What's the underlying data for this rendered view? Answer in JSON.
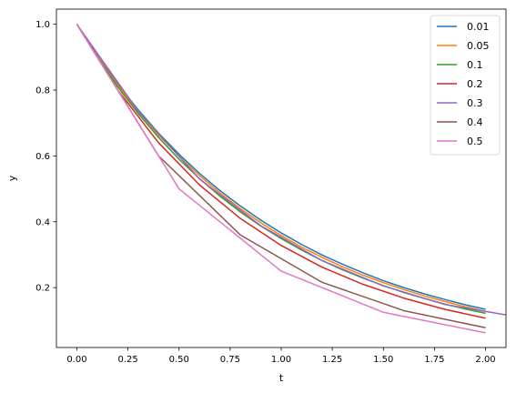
{
  "chart_data": {
    "type": "line",
    "xlabel": "t",
    "ylabel": "y",
    "xlim": [
      -0.1,
      2.1
    ],
    "ylim": [
      0.018,
      1.046
    ],
    "xticks": [
      0.0,
      0.25,
      0.5,
      0.75,
      1.0,
      1.25,
      1.5,
      1.75,
      2.0
    ],
    "xtick_labels": [
      "0.00",
      "0.25",
      "0.50",
      "0.75",
      "1.00",
      "1.25",
      "1.50",
      "1.75",
      "2.00"
    ],
    "yticks": [
      0.2,
      0.4,
      0.6,
      0.8,
      1.0
    ],
    "ytick_labels": [
      "0.2",
      "0.4",
      "0.6",
      "0.8",
      "1.0"
    ],
    "legend_position": "top-right",
    "grid": false,
    "series": [
      {
        "name": "0.01",
        "color": "#1f77b4",
        "x": [
          0,
          0.1,
          0.2,
          0.3,
          0.4,
          0.5,
          0.6,
          0.7,
          0.8,
          0.9,
          1.0,
          1.1,
          1.2,
          1.3,
          1.4,
          1.5,
          1.6,
          1.7,
          1.8,
          1.9,
          2.0
        ],
        "y": [
          1.0,
          0.904,
          0.818,
          0.74,
          0.669,
          0.605,
          0.547,
          0.495,
          0.448,
          0.405,
          0.366,
          0.331,
          0.299,
          0.271,
          0.245,
          0.221,
          0.2,
          0.181,
          0.164,
          0.148,
          0.134
        ]
      },
      {
        "name": "0.05",
        "color": "#ff7f0e",
        "x": [
          0,
          0.1,
          0.2,
          0.3,
          0.4,
          0.5,
          0.6,
          0.7,
          0.8,
          0.9,
          1.0,
          1.1,
          1.2,
          1.3,
          1.4,
          1.5,
          1.6,
          1.7,
          1.8,
          1.9,
          2.0
        ],
        "y": [
          1.0,
          0.902,
          0.815,
          0.735,
          0.663,
          0.599,
          0.54,
          0.488,
          0.44,
          0.397,
          0.358,
          0.323,
          0.292,
          0.263,
          0.238,
          0.215,
          0.194,
          0.175,
          0.158,
          0.142,
          0.128
        ]
      },
      {
        "name": "0.1",
        "color": "#2ca02c",
        "x": [
          0,
          0.1,
          0.2,
          0.3,
          0.4,
          0.5,
          0.6,
          0.7,
          0.8,
          0.9,
          1.0,
          1.1,
          1.2,
          1.3,
          1.4,
          1.5,
          1.6,
          1.7,
          1.8,
          1.9,
          2.0
        ],
        "y": [
          1.0,
          0.9,
          0.81,
          0.729,
          0.656,
          0.59,
          0.531,
          0.478,
          0.43,
          0.387,
          0.349,
          0.314,
          0.282,
          0.254,
          0.229,
          0.206,
          0.185,
          0.167,
          0.15,
          0.135,
          0.122
        ]
      },
      {
        "name": "0.2",
        "color": "#d62728",
        "x": [
          0,
          0.2,
          0.4,
          0.6,
          0.8,
          1.0,
          1.2,
          1.4,
          1.6,
          1.8,
          2.0
        ],
        "y": [
          1.0,
          0.8,
          0.64,
          0.512,
          0.41,
          0.328,
          0.262,
          0.21,
          0.168,
          0.134,
          0.107
        ]
      },
      {
        "name": "0.3",
        "color": "#9467bd",
        "x": [
          0,
          0.3,
          0.6,
          0.9,
          1.2,
          1.5,
          1.8,
          2.1
        ],
        "y": [
          1.0,
          0.736,
          0.53,
          0.388,
          0.282,
          0.205,
          0.149,
          0.117
        ]
      },
      {
        "name": "0.4",
        "color": "#8c564b",
        "x": [
          0,
          0.4,
          0.8,
          1.2,
          1.6,
          2.0
        ],
        "y": [
          1.0,
          0.6,
          0.36,
          0.216,
          0.13,
          0.078
        ]
      },
      {
        "name": "0.5",
        "color": "#e377c2",
        "x": [
          0,
          0.5,
          1.0,
          1.5,
          2.0
        ],
        "y": [
          1.0,
          0.5,
          0.25,
          0.125,
          0.0625
        ]
      }
    ]
  }
}
